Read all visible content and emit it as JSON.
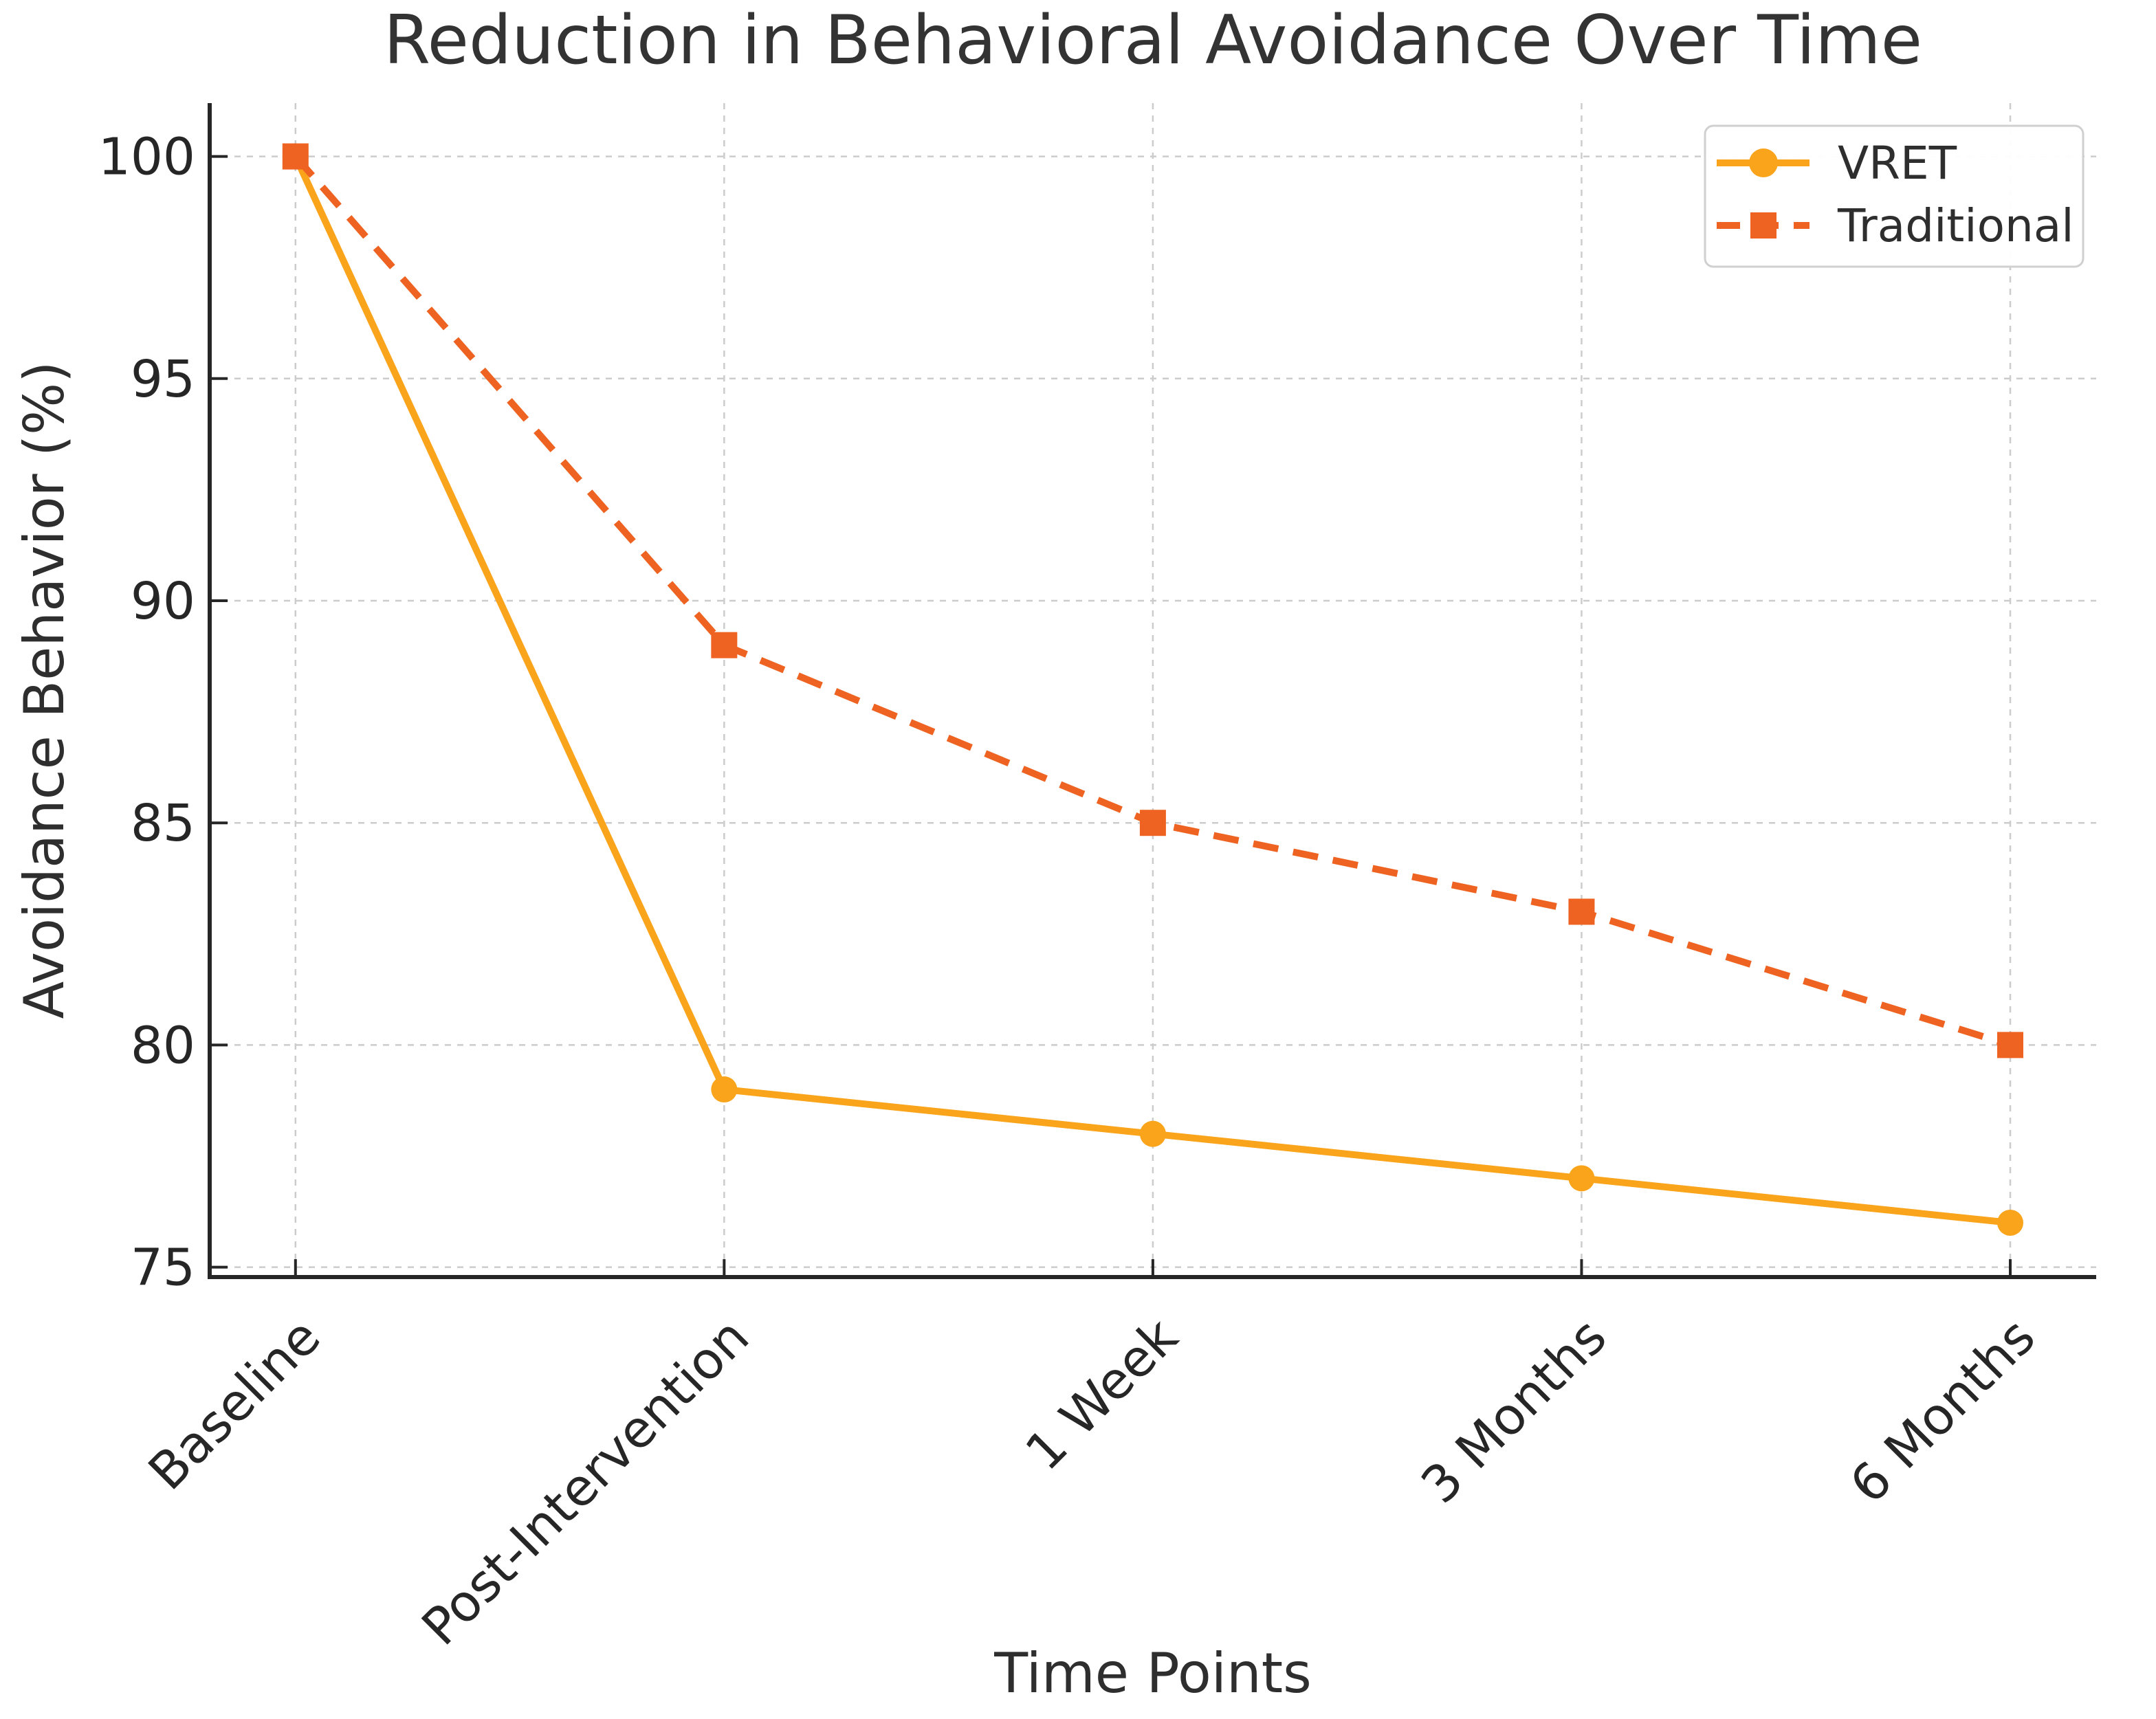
{
  "chart_data": {
    "type": "line",
    "title": "Reduction in Behavioral Avoidance Over Time",
    "xlabel": "Time Points",
    "ylabel": "Avoidance Behavior (%)",
    "categories": [
      "Baseline",
      "Post-Intervention",
      "1 Week",
      "3 Months",
      "6 Months"
    ],
    "series": [
      {
        "name": "VRET",
        "values": [
          100,
          79,
          78,
          77,
          76
        ],
        "color": "#FAA41B",
        "line_style": "solid",
        "marker": "circle"
      },
      {
        "name": "Traditional",
        "values": [
          100,
          89,
          85,
          83,
          80
        ],
        "color": "#EE6321",
        "line_style": "dashed",
        "marker": "square"
      }
    ],
    "ylim": [
      74.8,
      101.2
    ],
    "yticks": [
      75,
      80,
      85,
      90,
      95,
      100
    ],
    "x_tick_rotation": 45,
    "grid": true,
    "grid_color": "#cccccc",
    "axis_color": "#262626",
    "text_color": "#2e2e2e",
    "title_color": "#333333",
    "legend": {
      "position": "upper right",
      "border_color": "#d0d0d0",
      "background": "#ffffff"
    }
  }
}
